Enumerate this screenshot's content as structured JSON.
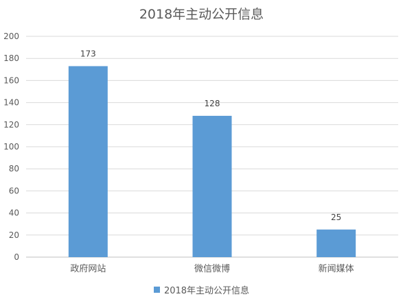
{
  "colors": {
    "bar": "#5b9bd5"
  },
  "chart_data": {
    "type": "bar",
    "title": "2018年主动公开信息",
    "categories": [
      "政府网站",
      "微信微博",
      "新闻媒体"
    ],
    "series": [
      {
        "name": "2018年主动公开信息",
        "values": [
          173,
          128,
          25
        ]
      }
    ],
    "ylim": [
      0,
      200
    ],
    "yticks": [
      0,
      20,
      40,
      60,
      80,
      100,
      120,
      140,
      160,
      180,
      200
    ],
    "grid": true,
    "legend": "bottom"
  }
}
